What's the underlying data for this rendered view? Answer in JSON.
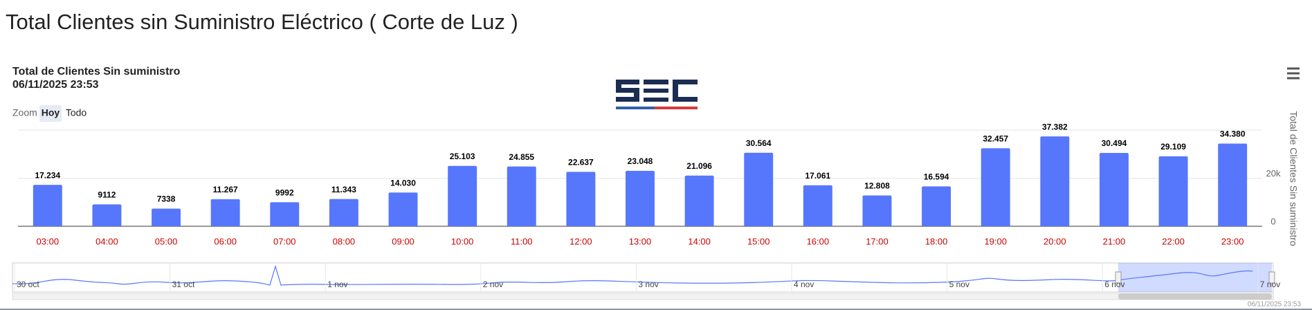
{
  "page": {
    "heading": "Total Clientes sin Suministro Eléctrico ( Corte de Luz )"
  },
  "zoom": {
    "label": "Zoom",
    "buttons": [
      "Hoy",
      "Todo"
    ]
  },
  "navigator": {
    "labels": [
      "30 oct",
      "31 oct",
      "1 nov",
      "2 nov",
      "3 nov",
      "4 nov",
      "5 nov",
      "6 nov",
      "7 nov"
    ]
  },
  "credit": "06/11/2025 23:53",
  "chart_data": {
    "type": "bar",
    "title": "Total de Clientes Sin suministro",
    "subtitle": "06/11/2025 23:53",
    "y_label": "Total de Clientes Sin suministro",
    "categories": [
      "03:00",
      "04:00",
      "05:00",
      "06:00",
      "07:00",
      "08:00",
      "09:00",
      "10:00",
      "11:00",
      "12:00",
      "13:00",
      "14:00",
      "15:00",
      "16:00",
      "17:00",
      "18:00",
      "19:00",
      "20:00",
      "21:00",
      "22:00",
      "23:00"
    ],
    "values": [
      17234,
      9112,
      7338,
      11267,
      9992,
      11343,
      14030,
      25103,
      24855,
      22637,
      23048,
      21096,
      30564,
      17061,
      12808,
      16594,
      32457,
      37382,
      30494,
      29109,
      34380
    ],
    "value_labels": [
      "17.234",
      "9112",
      "7338",
      "11.267",
      "9992",
      "11.343",
      "14.030",
      "25.103",
      "24.855",
      "22.637",
      "23.048",
      "21.096",
      "30.564",
      "17.061",
      "12.808",
      "16.594",
      "32.457",
      "37.382",
      "30.494",
      "29.109",
      "34.380"
    ],
    "color": "#5677fc",
    "ylim": [
      0,
      40000
    ],
    "yticks": [
      0,
      {
        "value": 20000,
        "label": "20k"
      }
    ],
    "grid": true
  }
}
